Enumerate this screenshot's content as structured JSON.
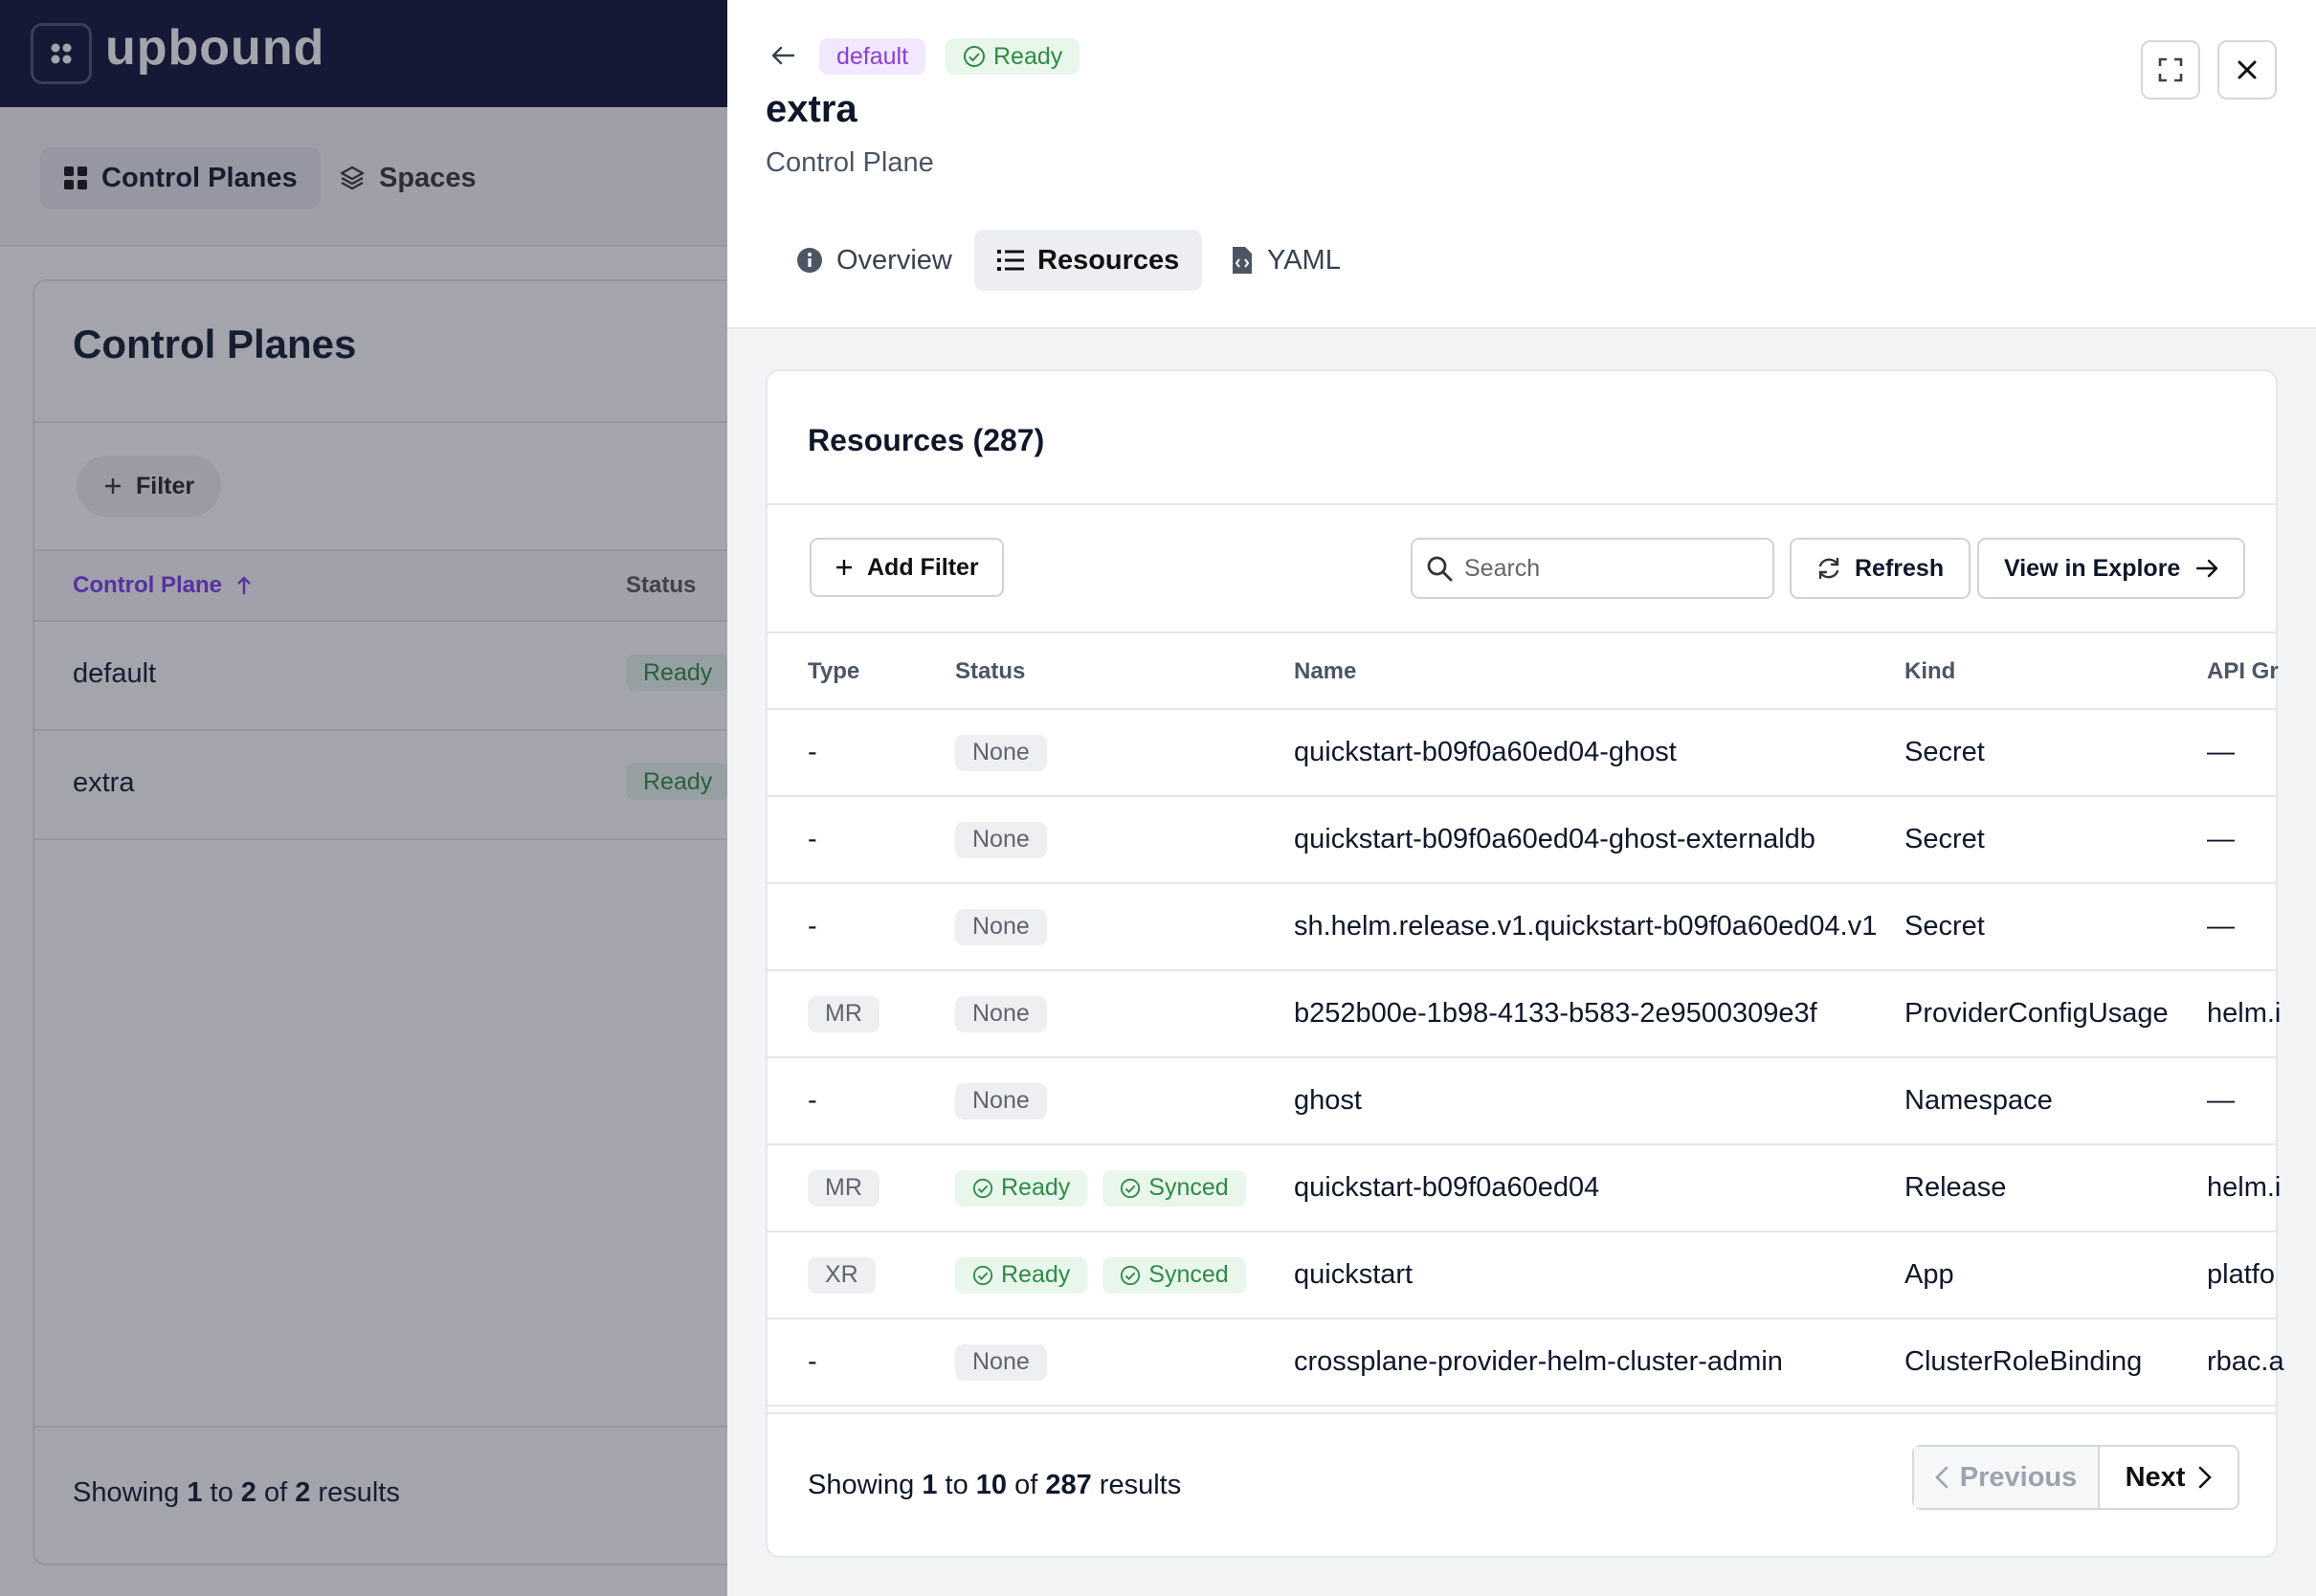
{
  "app": {
    "brand": "upbound",
    "nav": [
      {
        "label": "Control Planes",
        "icon": "grid-icon"
      },
      {
        "label": "Spaces",
        "icon": "layers-icon"
      }
    ],
    "page_title": "Control Planes",
    "filter_label": "Filter",
    "columns": {
      "name": "Control Plane",
      "status": "Status"
    },
    "rows": [
      {
        "name": "default",
        "status": "Ready"
      },
      {
        "name": "extra",
        "status": "Ready"
      }
    ],
    "footer": {
      "a": "Showing",
      "from": "1",
      "b": "to",
      "to": "2",
      "c": "of",
      "total": "2",
      "d": "results"
    }
  },
  "drawer": {
    "chip_space": "default",
    "chip_status": "Ready",
    "title": "extra",
    "subtitle": "Control Plane",
    "tabs": [
      {
        "label": "Overview",
        "icon": "info-icon"
      },
      {
        "label": "Resources",
        "icon": "list-icon",
        "active": true
      },
      {
        "label": "YAML",
        "icon": "file-code-icon"
      }
    ],
    "resources": {
      "title": "Resources (287)",
      "add_filter": "Add Filter",
      "search_placeholder": "Search",
      "refresh": "Refresh",
      "view_explore": "View in Explore",
      "columns": [
        "Type",
        "Status",
        "Name",
        "Kind",
        "API Gr"
      ],
      "rows": [
        {
          "type": "-",
          "statuses": [
            "None"
          ],
          "name": "quickstart-b09f0a60ed04-ghost",
          "kind": "Secret",
          "api": "—"
        },
        {
          "type": "-",
          "statuses": [
            "None"
          ],
          "name": "quickstart-b09f0a60ed04-ghost-externaldb",
          "kind": "Secret",
          "api": "—"
        },
        {
          "type": "-",
          "statuses": [
            "None"
          ],
          "name": "sh.helm.release.v1.quickstart-b09f0a60ed04.v1",
          "kind": "Secret",
          "api": "—"
        },
        {
          "type": "MR",
          "statuses": [
            "None"
          ],
          "name": "b252b00e-1b98-4133-b583-2e9500309e3f",
          "kind": "ProviderConfigUsage",
          "api": "helm.i"
        },
        {
          "type": "-",
          "statuses": [
            "None"
          ],
          "name": "ghost",
          "kind": "Namespace",
          "api": "—"
        },
        {
          "type": "MR",
          "statuses": [
            "Ready",
            "Synced"
          ],
          "name": "quickstart-b09f0a60ed04",
          "kind": "Release",
          "api": "helm.i"
        },
        {
          "type": "XR",
          "statuses": [
            "Ready",
            "Synced"
          ],
          "name": "quickstart",
          "kind": "App",
          "api": "platfo"
        },
        {
          "type": "-",
          "statuses": [
            "None"
          ],
          "name": "crossplane-provider-helm-cluster-admin",
          "kind": "ClusterRoleBinding",
          "api": "rbac.a"
        }
      ],
      "footer": {
        "a": "Showing",
        "from": "1",
        "b": "to",
        "to": "10",
        "c": "of",
        "total": "287",
        "d": "results"
      },
      "previous": "Previous",
      "next": "Next"
    }
  },
  "colors": {
    "accent": "#7c3aed",
    "ready_green": "#2e8b44",
    "header_navy": "#0c1132"
  }
}
